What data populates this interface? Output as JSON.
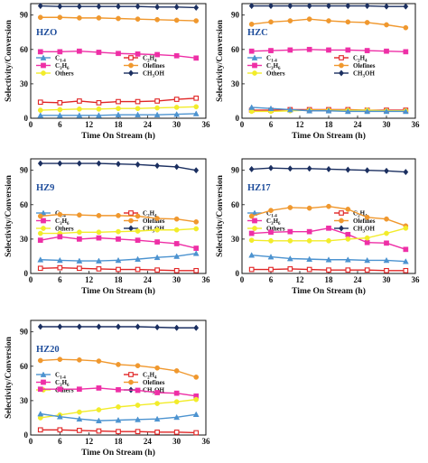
{
  "chart_data": [
    {
      "type": "line",
      "panel_label": "HZO",
      "xlabel": "Time On Stream (h)",
      "ylabel": "Selectivity/Conversion",
      "xlim": [
        0,
        36
      ],
      "ylim": [
        0,
        100
      ],
      "xticks": [
        "0",
        "6",
        "12",
        "18",
        "24",
        "30",
        "36"
      ],
      "yticks": [
        "0",
        "30",
        "60",
        "90"
      ],
      "series": [
        {
          "name": "CH3OH",
          "color": "#1b2f60",
          "marker": "diamond",
          "x": [
            2,
            6,
            10,
            14,
            18,
            22,
            26,
            30,
            34
          ],
          "values": [
            98,
            97.5,
            97.5,
            97.5,
            97.5,
            97.5,
            97,
            97,
            96.5
          ]
        },
        {
          "name": "Olefines",
          "color": "#f0982e",
          "marker": "circle",
          "x": [
            2,
            6,
            10,
            14,
            18,
            22,
            26,
            30,
            34
          ],
          "values": [
            88,
            88,
            87.5,
            87.5,
            87,
            86.5,
            86,
            85.5,
            85
          ]
        },
        {
          "name": "C3H6",
          "color": "#ee2fa6",
          "marker": "square",
          "x": [
            2,
            6,
            10,
            14,
            18,
            22,
            26,
            30,
            34
          ],
          "values": [
            58,
            58,
            58.5,
            57.5,
            56.5,
            56,
            55.5,
            54.5,
            52.5
          ]
        },
        {
          "name": "C2H4",
          "color": "#e02525",
          "marker": "square-open",
          "x": [
            2,
            6,
            10,
            14,
            18,
            22,
            26,
            30,
            34
          ],
          "values": [
            14,
            13.5,
            15,
            13.5,
            14.5,
            14.5,
            15,
            16.5,
            17.5
          ]
        },
        {
          "name": "Others",
          "color": "#f2ec2a",
          "marker": "circle",
          "x": [
            2,
            6,
            10,
            14,
            18,
            22,
            26,
            30,
            34
          ],
          "values": [
            7,
            7.5,
            8,
            8,
            8.5,
            8.5,
            9,
            9.5,
            10
          ]
        },
        {
          "name": "C1-4",
          "color": "#4c93d0",
          "marker": "triangle",
          "x": [
            2,
            6,
            10,
            14,
            18,
            22,
            26,
            30,
            34
          ],
          "values": [
            2.5,
            2.5,
            2.5,
            2.5,
            3,
            3,
            3,
            3.5,
            4
          ]
        }
      ]
    },
    {
      "type": "line",
      "panel_label": "HZC",
      "xlabel": "Time On Stream (h)",
      "ylabel": "Selectivity/Conversion",
      "xlim": [
        0,
        36
      ],
      "ylim": [
        0,
        100
      ],
      "xticks": [
        "0",
        "6",
        "12",
        "18",
        "24",
        "30",
        "36"
      ],
      "yticks": [
        "0",
        "30",
        "60",
        "90"
      ],
      "series": [
        {
          "name": "CH3OH",
          "color": "#1b2f60",
          "marker": "diamond",
          "x": [
            2,
            6,
            10,
            14,
            18,
            22,
            26,
            30,
            34
          ],
          "values": [
            98,
            98,
            98,
            98,
            98,
            98,
            98,
            97.5,
            97.5
          ]
        },
        {
          "name": "Olefines",
          "color": "#f0982e",
          "marker": "circle",
          "x": [
            2,
            6,
            10,
            14,
            18,
            22,
            26,
            30,
            34
          ],
          "values": [
            82,
            84,
            85,
            86.5,
            85,
            84,
            83.5,
            81.5,
            79
          ]
        },
        {
          "name": "C3H6",
          "color": "#ee2fa6",
          "marker": "square",
          "x": [
            2,
            6,
            10,
            14,
            18,
            22,
            26,
            30,
            34
          ],
          "values": [
            58.5,
            59,
            59.5,
            60,
            59.5,
            59.5,
            59,
            58.5,
            58
          ]
        },
        {
          "name": "C2H4",
          "color": "#e02525",
          "marker": "square-open",
          "x": [
            2,
            6,
            10,
            14,
            18,
            22,
            26,
            30,
            34
          ],
          "values": [
            7,
            7,
            7.5,
            7.5,
            7.5,
            7.5,
            7,
            7,
            7
          ]
        },
        {
          "name": "Others",
          "color": "#f2ec2a",
          "marker": "circle",
          "x": [
            2,
            6,
            10,
            14,
            18,
            22,
            26,
            30,
            34
          ],
          "values": [
            6,
            6,
            6.5,
            7,
            7,
            7,
            7,
            6.5,
            6.5
          ]
        },
        {
          "name": "C1-4",
          "color": "#4c93d0",
          "marker": "triangle",
          "x": [
            2,
            6,
            10,
            14,
            18,
            22,
            26,
            30,
            34
          ],
          "values": [
            9.5,
            8.5,
            7.5,
            6.5,
            6.5,
            6,
            6,
            6,
            6
          ]
        }
      ]
    },
    {
      "type": "line",
      "panel_label": "HZ9",
      "xlabel": "Time On Stream (h)",
      "ylabel": "Selectivity/Conversion",
      "xlim": [
        0,
        36
      ],
      "ylim": [
        0,
        100
      ],
      "xticks": [
        "0",
        "6",
        "12",
        "18",
        "24",
        "30",
        "36"
      ],
      "yticks": [
        "0",
        "30",
        "60",
        "90"
      ],
      "series": [
        {
          "name": "CH3OH",
          "color": "#1b2f60",
          "marker": "diamond",
          "x": [
            2,
            6,
            10,
            14,
            18,
            22,
            26,
            30,
            34
          ],
          "values": [
            96,
            96,
            96,
            96,
            95.5,
            95,
            94,
            93,
            90
          ]
        },
        {
          "name": "Olefines",
          "color": "#f0982e",
          "marker": "circle",
          "x": [
            2,
            6,
            10,
            14,
            18,
            22,
            26,
            30,
            34
          ],
          "values": [
            50,
            51.5,
            51,
            50.5,
            50.5,
            50,
            48,
            47.5,
            45
          ]
        },
        {
          "name": "Others",
          "color": "#f2ec2a",
          "marker": "circle",
          "x": [
            2,
            6,
            10,
            14,
            18,
            22,
            26,
            30,
            34
          ],
          "values": [
            35,
            35,
            36,
            36,
            36.5,
            37,
            38,
            38,
            39
          ]
        },
        {
          "name": "C3H6",
          "color": "#ee2fa6",
          "marker": "square",
          "x": [
            2,
            6,
            10,
            14,
            18,
            22,
            26,
            30,
            34
          ],
          "values": [
            29,
            32,
            30,
            31,
            30,
            29,
            27.5,
            26,
            22
          ]
        },
        {
          "name": "C1-4",
          "color": "#4c93d0",
          "marker": "triangle",
          "x": [
            2,
            6,
            10,
            14,
            18,
            22,
            26,
            30,
            34
          ],
          "values": [
            12,
            11.5,
            11,
            11,
            11.5,
            12.5,
            14,
            15,
            17.5
          ]
        },
        {
          "name": "C2H4",
          "color": "#e02525",
          "marker": "square-open",
          "x": [
            2,
            6,
            10,
            14,
            18,
            22,
            26,
            30,
            34
          ],
          "values": [
            4.5,
            5,
            4.5,
            4,
            3.5,
            3.5,
            3,
            2.5,
            2.5
          ]
        }
      ]
    },
    {
      "type": "line",
      "panel_label": "HZ17",
      "xlabel": "Time On Stream (h)",
      "ylabel": "Selectivity/Conversion",
      "xlim": [
        0,
        36
      ],
      "ylim": [
        0,
        100
      ],
      "xticks": [
        "0",
        "6",
        "12",
        "18",
        "24",
        "30",
        "36"
      ],
      "yticks": [
        "0",
        "30",
        "60",
        "90"
      ],
      "series": [
        {
          "name": "CH3OH",
          "color": "#1b2f60",
          "marker": "diamond",
          "x": [
            2,
            6,
            10,
            14,
            18,
            22,
            26,
            30,
            34
          ],
          "values": [
            91,
            92,
            91.5,
            91.5,
            91,
            90.5,
            90,
            89.5,
            88.5
          ]
        },
        {
          "name": "Olefines",
          "color": "#f0982e",
          "marker": "circle",
          "x": [
            2,
            6,
            10,
            14,
            18,
            22,
            26,
            30,
            34
          ],
          "values": [
            50,
            55,
            57.5,
            57,
            58.5,
            56,
            49,
            47.5,
            41.5
          ]
        },
        {
          "name": "C3H6",
          "color": "#ee2fa6",
          "marker": "square",
          "x": [
            2,
            6,
            10,
            14,
            18,
            22,
            26,
            30,
            34
          ],
          "values": [
            35,
            36,
            36.5,
            36.5,
            39.5,
            34,
            27,
            26.5,
            21
          ]
        },
        {
          "name": "Others",
          "color": "#f2ec2a",
          "marker": "circle",
          "x": [
            2,
            6,
            10,
            14,
            18,
            22,
            26,
            30,
            34
          ],
          "values": [
            29,
            28.5,
            28.5,
            28.5,
            28.5,
            30,
            31,
            35,
            39.5
          ]
        },
        {
          "name": "C1-4",
          "color": "#4c93d0",
          "marker": "triangle",
          "x": [
            2,
            6,
            10,
            14,
            18,
            22,
            26,
            30,
            34
          ],
          "values": [
            16,
            14.5,
            13,
            12.5,
            12,
            12,
            11.5,
            11.5,
            10.5
          ]
        },
        {
          "name": "C2H4",
          "color": "#e02525",
          "marker": "square-open",
          "x": [
            2,
            6,
            10,
            14,
            18,
            22,
            26,
            30,
            34
          ],
          "values": [
            3.5,
            3.5,
            4,
            3.5,
            3,
            3,
            3,
            2.5,
            2.5
          ]
        }
      ]
    },
    {
      "type": "line",
      "panel_label": "HZ20",
      "xlabel": "Time On Stream (h)",
      "ylabel": "Selectivity/Conversion",
      "xlim": [
        0,
        36
      ],
      "ylim": [
        0,
        100
      ],
      "xticks": [
        "0",
        "6",
        "12",
        "18",
        "24",
        "30",
        "36"
      ],
      "yticks": [
        "0",
        "30",
        "60",
        "90"
      ],
      "series": [
        {
          "name": "CH3OH",
          "color": "#1b2f60",
          "marker": "diamond",
          "x": [
            2,
            6,
            10,
            14,
            18,
            22,
            26,
            30,
            34
          ],
          "values": [
            94.5,
            94.5,
            94.5,
            94.5,
            94.5,
            94.5,
            94,
            93.5,
            93.5
          ]
        },
        {
          "name": "Olefines",
          "color": "#f0982e",
          "marker": "circle",
          "x": [
            2,
            6,
            10,
            14,
            18,
            22,
            26,
            30,
            34
          ],
          "values": [
            65,
            66,
            65.5,
            64.5,
            61.5,
            60.5,
            58.5,
            56,
            50.5
          ]
        },
        {
          "name": "C3H6",
          "color": "#ee2fa6",
          "marker": "square",
          "x": [
            2,
            6,
            10,
            14,
            18,
            22,
            26,
            30,
            34
          ],
          "values": [
            40,
            40,
            40,
            41,
            39.5,
            39,
            37,
            36.5,
            34
          ]
        },
        {
          "name": "Others",
          "color": "#f2ec2a",
          "marker": "circle",
          "x": [
            2,
            6,
            10,
            14,
            18,
            22,
            26,
            30,
            34
          ],
          "values": [
            15,
            17.5,
            20,
            22,
            24.5,
            26,
            27.5,
            29,
            31
          ]
        },
        {
          "name": "C1-4",
          "color": "#4c93d0",
          "marker": "triangle",
          "x": [
            2,
            6,
            10,
            14,
            18,
            22,
            26,
            30,
            34
          ],
          "values": [
            18.5,
            16,
            14,
            12.5,
            13,
            13.5,
            14,
            15.5,
            18
          ]
        },
        {
          "name": "C2H4",
          "color": "#e02525",
          "marker": "square-open",
          "x": [
            2,
            6,
            10,
            14,
            18,
            22,
            26,
            30,
            34
          ],
          "values": [
            4.5,
            4.5,
            4,
            3.5,
            3,
            3,
            2.5,
            2.5,
            2
          ]
        }
      ]
    }
  ]
}
